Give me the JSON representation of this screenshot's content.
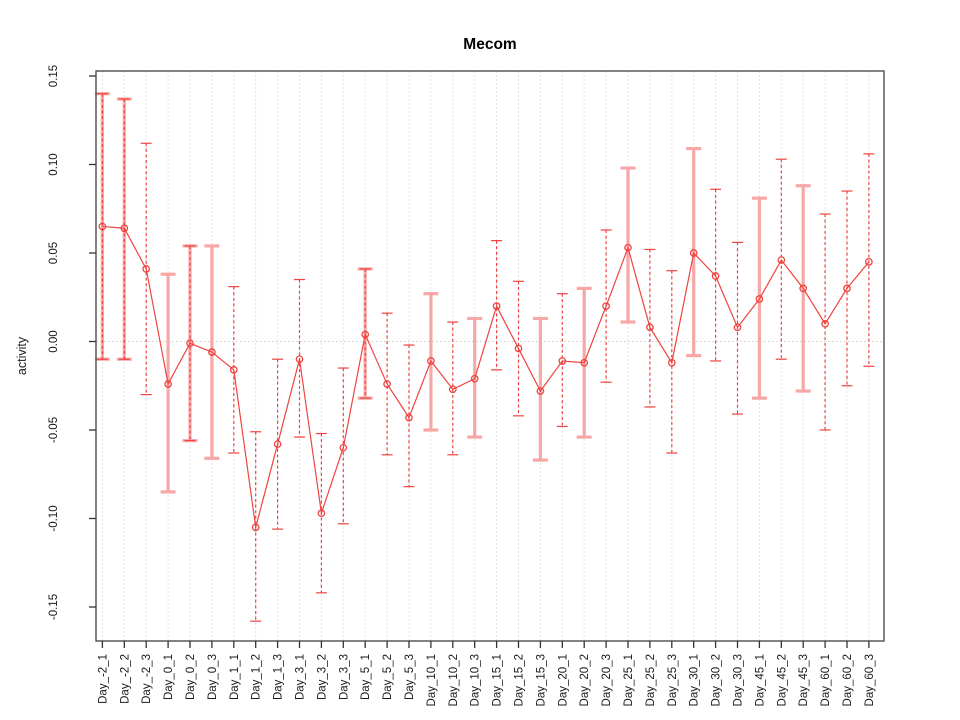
{
  "title": "Mecom",
  "chart_data": {
    "type": "line",
    "title": "Mecom",
    "xlabel": "",
    "ylabel": "activity",
    "ylim": [
      -0.17,
      0.152
    ],
    "ytick_values": [
      -0.15,
      -0.1,
      -0.05,
      0.0,
      0.05,
      0.1,
      0.15
    ],
    "ytick_labels": [
      "-0.15",
      "-0.10",
      "-0.05",
      "0.00",
      "0.05",
      "0.10",
      "0.15"
    ],
    "grid": "vertical dotted line at every category; horizontal dotted line at y=0",
    "legend_position": "none",
    "series": [
      {
        "name": "activity",
        "marker": "open-circle",
        "connected": true
      }
    ],
    "categories": [
      "Day_-2_1",
      "Day_-2_2",
      "Day_-2_3",
      "Day_0_1",
      "Day_0_2",
      "Day_0_3",
      "Day_1_1",
      "Day_1_2",
      "Day_1_3",
      "Day_3_1",
      "Day_3_2",
      "Day_3_3",
      "Day_5_1",
      "Day_5_2",
      "Day_5_3",
      "Day_10_1",
      "Day_10_2",
      "Day_10_3",
      "Day_15_1",
      "Day_15_2",
      "Day_15_3",
      "Day_20_1",
      "Day_20_2",
      "Day_20_3",
      "Day_25_1",
      "Day_25_2",
      "Day_25_3",
      "Day_30_1",
      "Day_30_2",
      "Day_30_3",
      "Day_45_1",
      "Day_45_2",
      "Day_45_3",
      "Day_60_1",
      "Day_60_2",
      "Day_60_3"
    ],
    "values": [
      0.065,
      0.064,
      0.041,
      -0.024,
      -0.001,
      -0.006,
      -0.016,
      -0.105,
      -0.058,
      -0.01,
      -0.097,
      -0.06,
      0.004,
      -0.024,
      -0.043,
      -0.011,
      -0.027,
      -0.021,
      0.02,
      -0.004,
      -0.028,
      -0.011,
      -0.012,
      0.02,
      0.053,
      0.008,
      -0.012,
      0.05,
      0.037,
      0.008,
      0.024,
      0.046,
      0.03,
      0.01,
      0.03,
      0.045
    ],
    "error_high": [
      0.14,
      0.137,
      0.112,
      0.038,
      0.054,
      0.054,
      0.031,
      -0.051,
      -0.01,
      0.035,
      -0.052,
      -0.015,
      0.041,
      0.016,
      -0.002,
      0.027,
      0.011,
      0.013,
      0.057,
      0.034,
      0.013,
      0.027,
      0.03,
      0.063,
      0.098,
      0.052,
      0.04,
      0.109,
      0.086,
      0.056,
      0.081,
      0.103,
      0.088,
      0.072,
      0.085,
      0.106
    ],
    "error_low": [
      -0.01,
      -0.01,
      -0.03,
      -0.085,
      -0.056,
      -0.066,
      -0.063,
      -0.158,
      -0.106,
      -0.054,
      -0.142,
      -0.103,
      -0.032,
      -0.064,
      -0.082,
      -0.05,
      -0.064,
      -0.054,
      -0.016,
      -0.042,
      -0.067,
      -0.048,
      -0.054,
      -0.023,
      0.011,
      -0.037,
      -0.063,
      -0.008,
      -0.011,
      -0.041,
      -0.032,
      -0.01,
      -0.028,
      -0.05,
      -0.025,
      -0.014
    ],
    "error_bar_styles": [
      "both",
      "both",
      "dashed",
      "solid",
      "both",
      "solid",
      "dashed",
      "dashed",
      "dashed",
      "dashed",
      "dashed",
      "dashed",
      "both",
      "dashed",
      "dashed",
      "solid",
      "dashed",
      "solid",
      "dashed",
      "dashed",
      "solid",
      "dashed",
      "solid",
      "dashed",
      "solid",
      "dashed",
      "dashed",
      "solid",
      "dashed",
      "dashed",
      "solid",
      "dashed",
      "solid",
      "dashed",
      "dashed",
      "dashed"
    ]
  },
  "colors": {
    "series_red": "#ef4340",
    "errorbar_pink": "#f7a8a6",
    "gridline": "#dadada",
    "zero_line": "#cfcfcf",
    "plot_border": "#4d4d4d",
    "tick": "#333333",
    "tick_label_text": "#1a1a1a",
    "title_text": "#000000"
  }
}
